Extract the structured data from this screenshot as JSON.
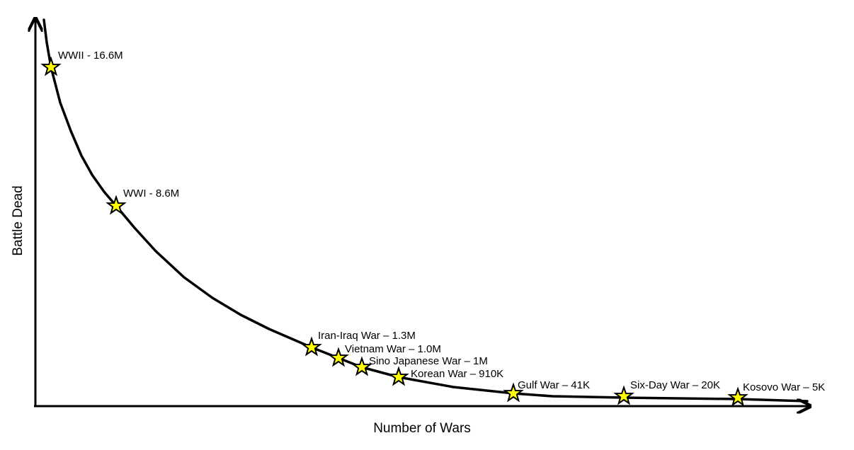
{
  "x_axis_label": "Number of Wars",
  "y_axis_label": "Battle Dead",
  "points": [
    {
      "label": "WWII - 16.6M"
    },
    {
      "label": "WWI - 8.6M"
    },
    {
      "label": "Iran-Iraq War – 1.3M"
    },
    {
      "label": "Vietnam War – 1.0M"
    },
    {
      "label": "Sino Japanese War – 1M"
    },
    {
      "label": "Korean War – 910K"
    },
    {
      "label": "Gulf War – 41K"
    },
    {
      "label": "Six-Day War – 20K"
    },
    {
      "label": "Kosovo War – 5K"
    }
  ]
}
